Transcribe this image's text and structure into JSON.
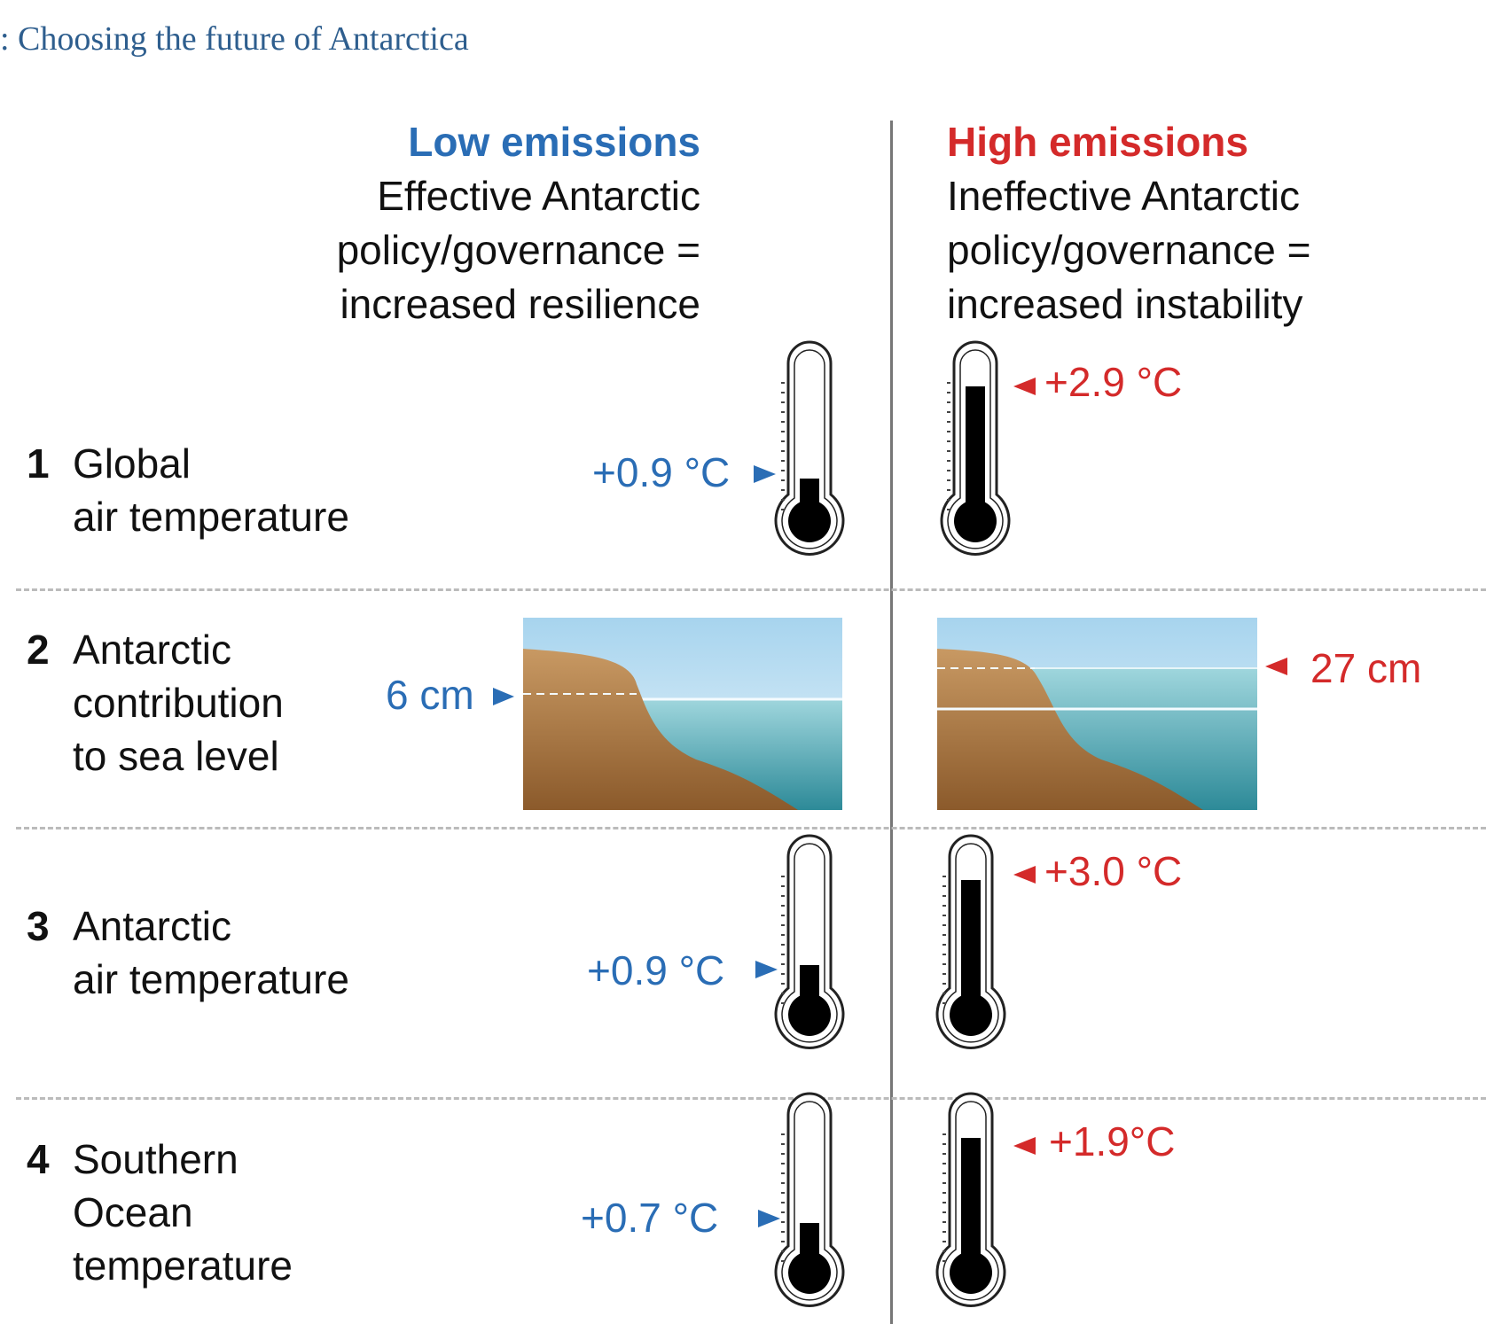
{
  "caption": ": Choosing the future of Antarctica",
  "columns": {
    "low": {
      "title": "Low emissions",
      "lines": [
        "Effective Antarctic",
        "policy/governance =",
        "increased resilience"
      ],
      "color": "#2a6db5"
    },
    "high": {
      "title": "High emissions",
      "lines": [
        "Ineffective Antarctic",
        "policy/governance =",
        "increased instability"
      ],
      "color": "#d42a2a"
    }
  },
  "rows": [
    {
      "num": "1",
      "lines": [
        "Global",
        "air temperature"
      ],
      "low_value": "+0.9 °C",
      "high_value": "+2.9 °C",
      "low_level": 0.25,
      "high_level": 0.9
    },
    {
      "num": "2",
      "lines": [
        "Antarctic",
        "contribution",
        "to sea level"
      ],
      "low_value": "6 cm",
      "high_value": "27 cm"
    },
    {
      "num": "3",
      "lines": [
        "Antarctic",
        "air temperature"
      ],
      "low_value": "+0.9 °C",
      "high_value": "+3.0 °C",
      "low_level": 0.3,
      "high_level": 0.9
    },
    {
      "num": "4",
      "lines": [
        "Southern",
        "Ocean",
        "temperature"
      ],
      "low_value": "+0.7 °C",
      "high_value": "+1.9°C",
      "low_level": 0.3,
      "high_level": 0.9
    }
  ],
  "icons": [
    "thermometer-icon",
    "coastline-sea-level-icon",
    "arrow-right-icon",
    "arrow-left-icon"
  ]
}
